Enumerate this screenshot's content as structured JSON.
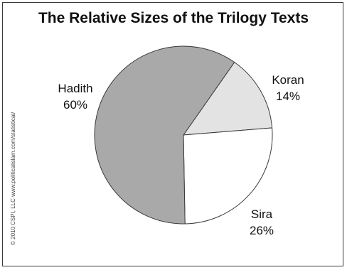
{
  "chart_data": {
    "type": "pie",
    "title": "The Relative Sizes of the Trilogy Texts",
    "slices": [
      {
        "name": "Hadith",
        "value": 60,
        "value_label": "60%",
        "color": "#a9a9a9"
      },
      {
        "name": "Koran",
        "value": 14,
        "value_label": "14%",
        "color": "#e3e3e3"
      },
      {
        "name": "Sira",
        "value": 26,
        "value_label": "26%",
        "color": "#ffffff"
      }
    ],
    "outline_color": "#3a3a3a",
    "legend": "none"
  },
  "copyright": "© 2010 CSPI, LLC  www.politicalislam.com/statistical/"
}
